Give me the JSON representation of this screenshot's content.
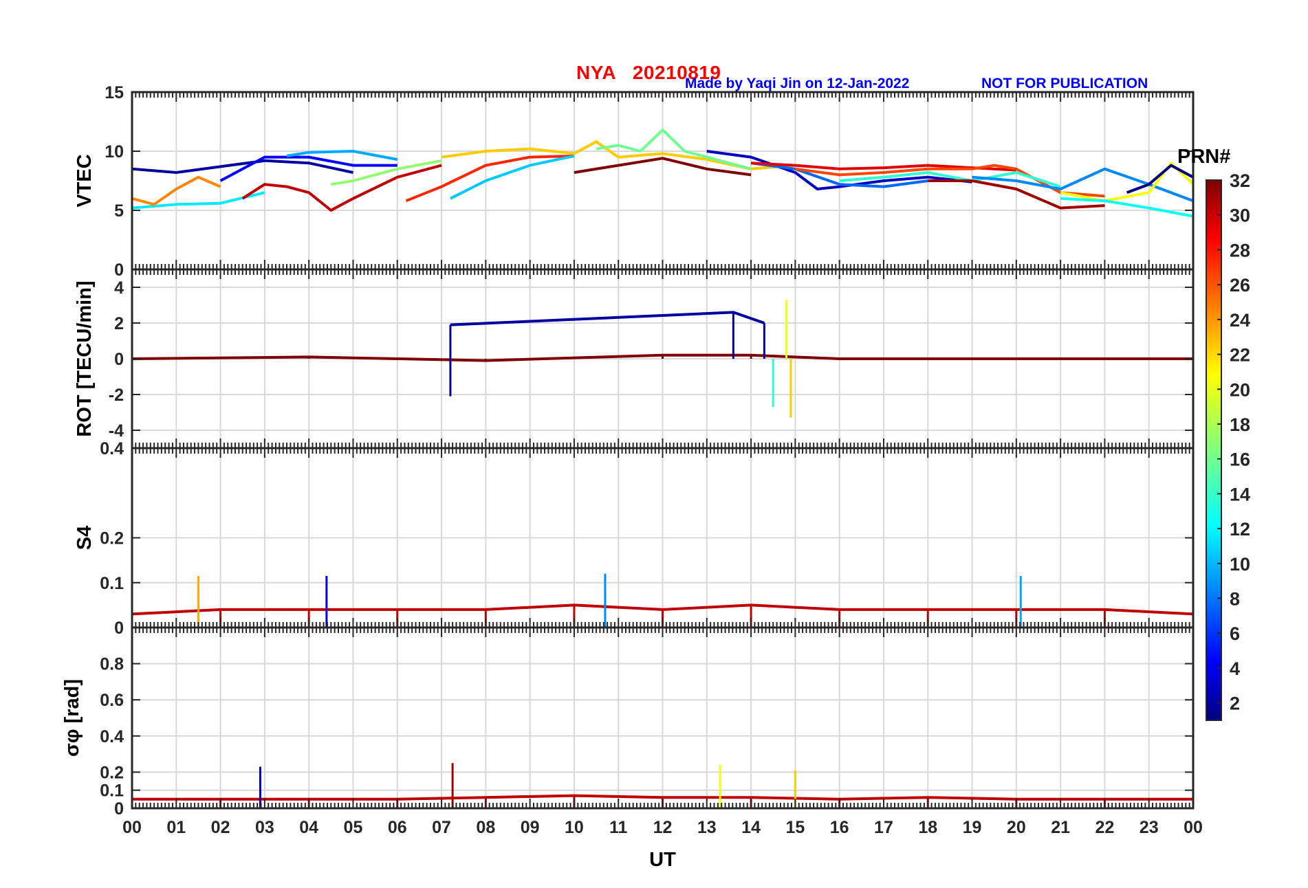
{
  "header": {
    "station": "NYA",
    "date": "20210819",
    "credit": "Made by Yaqi Jin on 12-Jan-2022",
    "notice": "NOT FOR PUBLICATION"
  },
  "chart_data": {
    "type": "line",
    "xlabel": "UT",
    "x_ticks": [
      "00",
      "01",
      "02",
      "03",
      "04",
      "05",
      "06",
      "07",
      "08",
      "09",
      "10",
      "11",
      "12",
      "13",
      "14",
      "15",
      "16",
      "17",
      "18",
      "19",
      "20",
      "21",
      "22",
      "23",
      "00"
    ],
    "xlim": [
      0,
      24
    ],
    "colorbar": {
      "title": "PRN#",
      "range": [
        1,
        32
      ],
      "ticks": [
        "2",
        "4",
        "6",
        "8",
        "10",
        "12",
        "14",
        "16",
        "18",
        "20",
        "22",
        "24",
        "26",
        "28",
        "30",
        "32"
      ],
      "colormap": "jet"
    },
    "panels": [
      {
        "name": "VTEC",
        "ylabel": "VTEC",
        "ylim": [
          0,
          15
        ],
        "y_ticks": [
          "0",
          "5",
          "10",
          "15"
        ],
        "series": [
          {
            "prn": 2,
            "x": [
              0,
              1,
              2,
              3,
              4,
              5
            ],
            "y": [
              8.5,
              8.2,
              8.7,
              9.2,
              9.0,
              8.2
            ]
          },
          {
            "prn": 5,
            "x": [
              2,
              3,
              4,
              5,
              6
            ],
            "y": [
              7.5,
              9.5,
              9.5,
              8.8,
              8.8
            ]
          },
          {
            "prn": 10,
            "x": [
              3.5,
              4,
              5,
              6
            ],
            "y": [
              9.6,
              9.9,
              10.0,
              9.3
            ]
          },
          {
            "prn": 12,
            "x": [
              0,
              1,
              2,
              3
            ],
            "y": [
              5.2,
              5.5,
              5.6,
              6.5
            ]
          },
          {
            "prn": 24,
            "x": [
              0,
              0.5,
              1,
              1.5,
              2
            ],
            "y": [
              6.0,
              5.5,
              6.8,
              7.8,
              7.0
            ]
          },
          {
            "prn": 30,
            "x": [
              2.5,
              3,
              3.5,
              4,
              4.5,
              5,
              6,
              7
            ],
            "y": [
              6.0,
              7.2,
              7.0,
              6.5,
              5.0,
              6.0,
              7.8,
              8.8
            ]
          },
          {
            "prn": 27,
            "x": [
              6.2,
              7,
              8,
              9,
              10
            ],
            "y": [
              5.8,
              7.0,
              8.8,
              9.5,
              9.6
            ]
          },
          {
            "prn": 11,
            "x": [
              7.2,
              8,
              9,
              10
            ],
            "y": [
              6.0,
              7.5,
              8.8,
              9.6
            ]
          },
          {
            "prn": 17,
            "x": [
              4.5,
              5,
              6,
              7
            ],
            "y": [
              7.2,
              7.5,
              8.5,
              9.2
            ]
          },
          {
            "prn": 22,
            "x": [
              7,
              8,
              9,
              10,
              10.5,
              11,
              12,
              13,
              14,
              15
            ],
            "y": [
              9.5,
              10.0,
              10.2,
              9.8,
              10.8,
              9.5,
              9.8,
              9.3,
              8.5,
              8.8
            ]
          },
          {
            "prn": 16,
            "x": [
              10.5,
              11,
              11.5,
              12,
              12.5,
              13,
              14
            ],
            "y": [
              10.2,
              10.5,
              10.0,
              11.8,
              10.0,
              9.5,
              8.5
            ]
          },
          {
            "prn": 32,
            "x": [
              10,
              11,
              12,
              13,
              14
            ],
            "y": [
              8.2,
              8.8,
              9.4,
              8.5,
              8.0
            ]
          },
          {
            "prn": 3,
            "x": [
              13,
              14,
              15,
              15.5,
              16,
              17,
              18,
              19
            ],
            "y": [
              10.0,
              9.5,
              8.2,
              6.8,
              7.0,
              7.5,
              7.8,
              7.4
            ]
          },
          {
            "prn": 8,
            "x": [
              14,
              15,
              16,
              17,
              18
            ],
            "y": [
              9.0,
              8.5,
              7.2,
              7.0,
              7.5
            ]
          },
          {
            "prn": 29,
            "x": [
              14,
              15,
              16,
              17,
              18,
              19,
              20
            ],
            "y": [
              9.0,
              8.8,
              8.5,
              8.6,
              8.8,
              8.6,
              8.4
            ]
          },
          {
            "prn": 26,
            "x": [
              15,
              16,
              17,
              18,
              19,
              19.5,
              20,
              21,
              22
            ],
            "y": [
              8.5,
              8.0,
              8.2,
              8.5,
              8.5,
              8.8,
              8.5,
              6.5,
              6.2
            ]
          },
          {
            "prn": 14,
            "x": [
              16,
              17,
              18,
              19,
              20,
              21
            ],
            "y": [
              7.5,
              7.8,
              8.2,
              7.5,
              8.2,
              7.0
            ]
          },
          {
            "prn": 31,
            "x": [
              18,
              19,
              20,
              21,
              22
            ],
            "y": [
              7.5,
              7.5,
              6.8,
              5.2,
              5.4
            ]
          },
          {
            "prn": 9,
            "x": [
              19,
              20,
              21,
              22,
              23,
              24
            ],
            "y": [
              7.8,
              7.5,
              6.8,
              8.5,
              7.2,
              5.8
            ]
          },
          {
            "prn": 20,
            "x": [
              21,
              22,
              23,
              23.5,
              24
            ],
            "y": [
              6.5,
              5.8,
              6.5,
              9.0,
              7.2
            ]
          },
          {
            "prn": 1,
            "x": [
              22.5,
              23,
              23.5,
              24
            ],
            "y": [
              6.5,
              7.2,
              8.8,
              7.8
            ]
          },
          {
            "prn": 13,
            "x": [
              21,
              22,
              23,
              24
            ],
            "y": [
              6.0,
              5.8,
              5.2,
              4.5
            ]
          }
        ]
      },
      {
        "name": "ROT",
        "ylabel": "ROT [TECU/min]",
        "ylim": [
          -5,
          5
        ],
        "y_ticks": [
          "-4",
          "-2",
          "0",
          "2",
          "4"
        ],
        "series": [
          {
            "prn": 32,
            "x": [
              0,
              4,
              8,
              12,
              14,
              16,
              20,
              24
            ],
            "y": [
              0,
              0.1,
              -0.1,
              0.2,
              0.2,
              0,
              0,
              0
            ]
          },
          {
            "prn": 2,
            "x": [
              7.2,
              13.6,
              14.3
            ],
            "y": [
              1.9,
              2.6,
              2.0
            ]
          },
          {
            "prn": 22,
            "x": [
              14.9
            ],
            "y": [
              -3.3
            ]
          },
          {
            "prn": 20,
            "x": [
              14.8
            ],
            "y": [
              3.3
            ]
          },
          {
            "prn": 14,
            "x": [
              14.5
            ],
            "y": [
              -2.7
            ]
          },
          {
            "prn": 2,
            "x": [
              7.2
            ],
            "y": [
              -2.1
            ]
          }
        ]
      },
      {
        "name": "S4",
        "ylabel": "S4",
        "ylim": [
          0,
          0.4
        ],
        "y_ticks": [
          "0",
          "0.1",
          "0.2",
          "0.4"
        ],
        "series": [
          {
            "prn": 30,
            "x": [
              0,
              2,
              4,
              6,
              8,
              10,
              12,
              14,
              16,
              18,
              20,
              22,
              24
            ],
            "y": [
              0.03,
              0.04,
              0.04,
              0.04,
              0.04,
              0.05,
              0.04,
              0.05,
              0.04,
              0.04,
              0.04,
              0.04,
              0.03
            ]
          },
          {
            "prn": 23,
            "x": [
              1.5
            ],
            "y": [
              0.115
            ]
          },
          {
            "prn": 4,
            "x": [
              4.4
            ],
            "y": [
              0.115
            ]
          },
          {
            "prn": 9,
            "x": [
              10.7
            ],
            "y": [
              0.12
            ]
          },
          {
            "prn": 10,
            "x": [
              20.1
            ],
            "y": [
              0.115
            ]
          }
        ]
      },
      {
        "name": "sigma_phi",
        "ylabel": "σφ [rad]",
        "ylim": [
          0,
          1
        ],
        "y_ticks": [
          "0",
          "0.1",
          "0.2",
          "0.4",
          "0.6",
          "0.8"
        ],
        "series": [
          {
            "prn": 30,
            "x": [
              0,
              2,
              4,
              6,
              8,
              10,
              12,
              14,
              16,
              18,
              20,
              22,
              24
            ],
            "y": [
              0.05,
              0.05,
              0.05,
              0.05,
              0.06,
              0.07,
              0.06,
              0.06,
              0.05,
              0.06,
              0.05,
              0.05,
              0.05
            ]
          },
          {
            "prn": 3,
            "x": [
              2.9
            ],
            "y": [
              0.23
            ]
          },
          {
            "prn": 31,
            "x": [
              7.25
            ],
            "y": [
              0.25
            ]
          },
          {
            "prn": 20,
            "x": [
              13.3
            ],
            "y": [
              0.24
            ]
          },
          {
            "prn": 22,
            "x": [
              15.0
            ],
            "y": [
              0.21
            ]
          }
        ]
      }
    ]
  }
}
